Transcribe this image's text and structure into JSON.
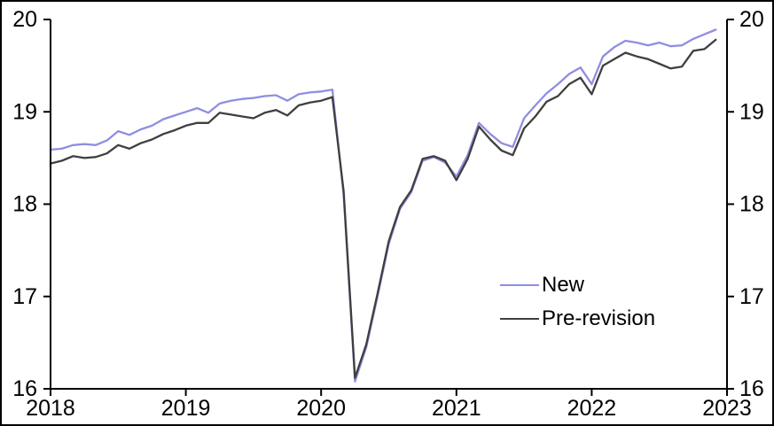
{
  "frame": {
    "background": "#ffffff",
    "border_color": "#000000",
    "axis_color": "#000000"
  },
  "legend": {
    "items": [
      {
        "label": "New",
        "color": "#8e8ee2"
      },
      {
        "label": "Pre-revision",
        "color": "#3f3f3f"
      }
    ]
  },
  "chart_data": {
    "type": "line",
    "title": "",
    "xlabel": "",
    "ylabel": "",
    "grid": false,
    "legend_position": "inside-center-right",
    "x_start": "2018-01",
    "x_end": "2022-12",
    "frequency": "monthly",
    "xlim": [
      2018,
      2023
    ],
    "ylim": [
      16,
      20
    ],
    "x_tick_labels": [
      "2018",
      "2019",
      "2020",
      "2021",
      "2022",
      "2023"
    ],
    "y_ticks": [
      16,
      17,
      18,
      19,
      20
    ],
    "y_tick_labels_left": [
      "16",
      "17",
      "18",
      "19",
      "20"
    ],
    "y_tick_labels_right": [
      "16",
      "17",
      "18",
      "19",
      "20"
    ],
    "series": [
      {
        "name": "New",
        "color": "#8e8ee2",
        "values": [
          18.59,
          18.6,
          18.64,
          18.65,
          18.64,
          18.69,
          18.79,
          18.75,
          18.81,
          18.85,
          18.92,
          18.96,
          19.0,
          19.04,
          18.99,
          19.09,
          19.12,
          19.14,
          19.15,
          19.17,
          19.18,
          19.12,
          19.19,
          19.21,
          19.22,
          19.24,
          18.1,
          16.08,
          16.45,
          17.0,
          17.57,
          17.95,
          18.13,
          18.47,
          18.51,
          18.45,
          18.3,
          18.53,
          18.88,
          18.76,
          18.66,
          18.62,
          18.93,
          19.07,
          19.2,
          19.3,
          19.41,
          19.48,
          19.3,
          19.6,
          19.7,
          19.77,
          19.75,
          19.72,
          19.75,
          19.71,
          19.72,
          19.79,
          19.84,
          19.89
        ]
      },
      {
        "name": "Pre-revision",
        "color": "#3f3f3f",
        "values": [
          18.44,
          18.47,
          18.52,
          18.5,
          18.51,
          18.55,
          18.64,
          18.6,
          18.66,
          18.7,
          18.76,
          18.8,
          18.85,
          18.88,
          18.88,
          18.99,
          18.97,
          18.95,
          18.93,
          18.99,
          19.02,
          18.96,
          19.07,
          19.1,
          19.12,
          19.16,
          18.14,
          16.12,
          16.48,
          17.03,
          17.6,
          17.97,
          18.15,
          18.49,
          18.52,
          18.47,
          18.26,
          18.49,
          18.84,
          18.7,
          18.58,
          18.53,
          18.82,
          18.95,
          19.11,
          19.17,
          19.3,
          19.37,
          19.19,
          19.5,
          19.57,
          19.64,
          19.6,
          19.57,
          19.52,
          19.47,
          19.49,
          19.66,
          19.68,
          19.78
        ]
      }
    ]
  }
}
